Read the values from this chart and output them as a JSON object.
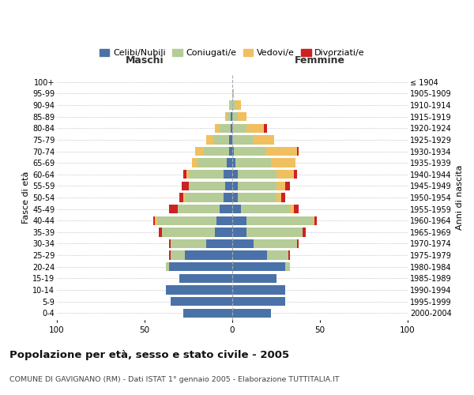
{
  "age_groups": [
    "0-4",
    "5-9",
    "10-14",
    "15-19",
    "20-24",
    "25-29",
    "30-34",
    "35-39",
    "40-44",
    "45-49",
    "50-54",
    "55-59",
    "60-64",
    "65-69",
    "70-74",
    "75-79",
    "80-84",
    "85-89",
    "90-94",
    "95-99",
    "100+"
  ],
  "birth_years": [
    "2000-2004",
    "1995-1999",
    "1990-1994",
    "1985-1989",
    "1980-1984",
    "1975-1979",
    "1970-1974",
    "1965-1969",
    "1960-1964",
    "1955-1959",
    "1950-1954",
    "1945-1949",
    "1940-1944",
    "1935-1939",
    "1930-1934",
    "1925-1929",
    "1920-1924",
    "1915-1919",
    "1910-1914",
    "1905-1909",
    "≤ 1904"
  ],
  "maschi_celibi": [
    28,
    35,
    38,
    30,
    36,
    27,
    15,
    10,
    9,
    7,
    5,
    4,
    5,
    3,
    2,
    2,
    1,
    1,
    0,
    0,
    0
  ],
  "maschi_coniugati": [
    0,
    0,
    0,
    0,
    2,
    8,
    20,
    30,
    34,
    24,
    22,
    21,
    20,
    17,
    14,
    9,
    6,
    2,
    2,
    0,
    0
  ],
  "maschi_vedovi": [
    0,
    0,
    0,
    0,
    0,
    0,
    0,
    0,
    1,
    0,
    1,
    0,
    1,
    3,
    5,
    4,
    3,
    1,
    0,
    0,
    0
  ],
  "maschi_divorziati": [
    0,
    0,
    0,
    0,
    0,
    1,
    1,
    2,
    1,
    5,
    2,
    4,
    2,
    0,
    0,
    0,
    0,
    0,
    0,
    0,
    0
  ],
  "femmine_nubili": [
    22,
    30,
    30,
    25,
    30,
    20,
    12,
    8,
    8,
    5,
    3,
    3,
    3,
    2,
    1,
    0,
    0,
    0,
    0,
    0,
    0
  ],
  "femmine_coniugate": [
    0,
    0,
    0,
    0,
    3,
    12,
    25,
    32,
    38,
    28,
    22,
    22,
    22,
    20,
    18,
    12,
    8,
    3,
    2,
    0,
    0
  ],
  "femmine_vedove": [
    0,
    0,
    0,
    0,
    0,
    0,
    0,
    0,
    1,
    2,
    3,
    5,
    10,
    14,
    18,
    12,
    10,
    5,
    3,
    1,
    0
  ],
  "femmine_divorziate": [
    0,
    0,
    0,
    0,
    0,
    1,
    1,
    2,
    1,
    3,
    2,
    3,
    2,
    0,
    1,
    0,
    2,
    0,
    0,
    0,
    0
  ],
  "colors": {
    "celibi": "#4a72a8",
    "coniugati": "#b5cc96",
    "vedovi": "#f0c060",
    "divorziati": "#cc2222"
  },
  "title": "Popolazione per età, sesso e stato civile - 2005",
  "subtitle": "COMUNE DI GAVIGNANO (RM) - Dati ISTAT 1° gennaio 2005 - Elaborazione TUTTITALIA.IT",
  "ylabel_left": "Fasce di età",
  "ylabel_right": "Anni di nascita",
  "maschi_label": "Maschi",
  "femmine_label": "Femmine"
}
